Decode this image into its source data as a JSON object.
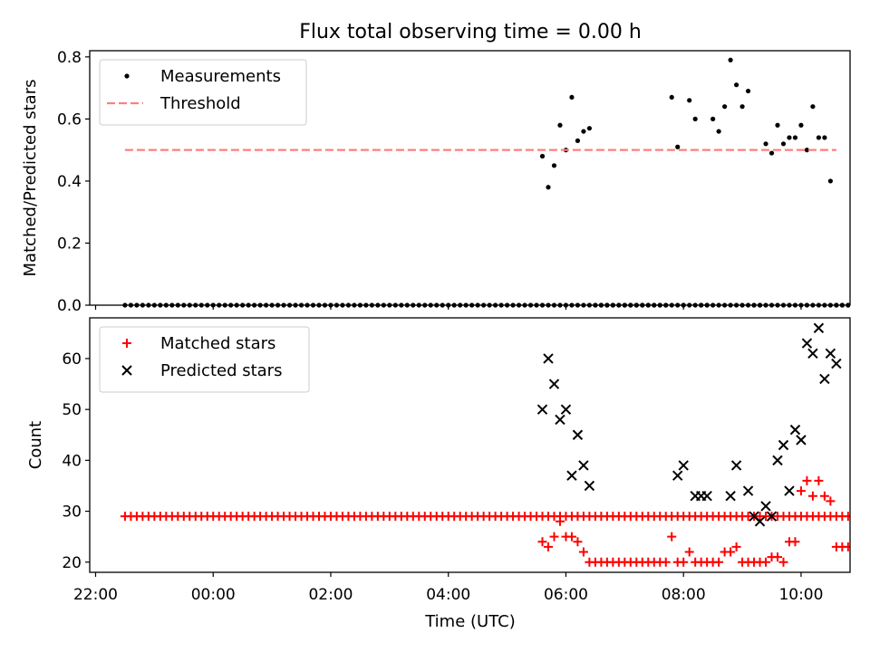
{
  "title": "Flux total observing time = 0.00 h",
  "xlabel": "Time (UTC)",
  "x_tick_labels": [
    "22:00",
    "00:00",
    "02:00",
    "04:00",
    "06:00",
    "08:00",
    "10:00"
  ],
  "chart_data": [
    {
      "type": "scatter",
      "ylabel": "Matched/Predicted stars",
      "ylim": [
        0,
        0.82
      ],
      "yticks": [
        0.0,
        0.2,
        0.4,
        0.6,
        0.8
      ],
      "y_tick_labels": [
        "0.0",
        "0.2",
        "0.4",
        "0.6",
        "0.8"
      ],
      "legend_placement": "upper-left",
      "series": [
        {
          "name": "Measurements",
          "style": "dot",
          "color": "#000000",
          "x": [
            "22:30",
            "22:36",
            "22:42",
            "22:48",
            "22:54",
            "23:00",
            "23:06",
            "23:12",
            "23:18",
            "23:24",
            "23:30",
            "23:36",
            "23:42",
            "23:48",
            "23:54",
            "00:00",
            "00:06",
            "00:12",
            "00:18",
            "00:24",
            "00:30",
            "00:36",
            "00:42",
            "00:48",
            "00:54",
            "01:00",
            "01:06",
            "01:12",
            "01:18",
            "01:24",
            "01:30",
            "01:36",
            "01:42",
            "01:48",
            "01:54",
            "02:00",
            "02:06",
            "02:12",
            "02:18",
            "02:24",
            "02:30",
            "02:36",
            "02:42",
            "02:48",
            "02:54",
            "03:00",
            "03:06",
            "03:12",
            "03:18",
            "03:24",
            "03:30",
            "03:36",
            "03:42",
            "03:48",
            "03:54",
            "04:00",
            "04:06",
            "04:12",
            "04:18",
            "04:24",
            "04:30",
            "04:36",
            "04:42",
            "04:48",
            "04:54",
            "05:00",
            "05:06",
            "05:12",
            "05:18",
            "05:24",
            "05:30",
            "05:36",
            "05:42",
            "05:48",
            "05:54",
            "06:00",
            "06:06",
            "06:12",
            "06:18",
            "06:24",
            "06:30",
            "06:36",
            "06:42",
            "06:48",
            "06:54",
            "07:00",
            "07:06",
            "07:12",
            "07:18",
            "07:24",
            "07:30",
            "07:36",
            "07:42",
            "07:48",
            "07:54",
            "08:00",
            "08:06",
            "08:12",
            "08:18",
            "08:24",
            "08:30",
            "08:36",
            "08:42",
            "08:48",
            "08:54",
            "09:00",
            "09:06",
            "09:12",
            "09:18",
            "09:24",
            "09:30",
            "09:36",
            "09:42",
            "09:48",
            "09:54",
            "10:00",
            "10:06",
            "10:12",
            "10:18",
            "10:24",
            "10:30",
            "10:36",
            "10:42",
            "10:48"
          ],
          "y": [
            0,
            0,
            0,
            0,
            0,
            0,
            0,
            0,
            0,
            0,
            0,
            0,
            0,
            0,
            0,
            0,
            0,
            0,
            0,
            0,
            0,
            0,
            0,
            0,
            0,
            0,
            0,
            0,
            0,
            0,
            0,
            0,
            0,
            0,
            0,
            0,
            0,
            0,
            0,
            0,
            0,
            0,
            0,
            0,
            0,
            0,
            0,
            0,
            0,
            0,
            0,
            0,
            0,
            0,
            0,
            0,
            0,
            0,
            0,
            0,
            0,
            0,
            0,
            0,
            0,
            0,
            0,
            0,
            0,
            0,
            0,
            0,
            0,
            0,
            0,
            0,
            0,
            0,
            0,
            0,
            0,
            0,
            0,
            0,
            0,
            0,
            0,
            0,
            0,
            0,
            0,
            0,
            0,
            0,
            0,
            0,
            0,
            0,
            0,
            0,
            0,
            0,
            0,
            0,
            0,
            0,
            0,
            0,
            0,
            0,
            0,
            0,
            0,
            0,
            0,
            0,
            0,
            0,
            0,
            0,
            0,
            0,
            0,
            0
          ]
        },
        {
          "name": "Measurements",
          "style": "dot",
          "color": "#000000",
          "x": [
            "05:36",
            "05:42",
            "05:48",
            "05:54",
            "06:00",
            "06:06",
            "06:12",
            "06:18",
            "06:24",
            "06:30",
            "06:36",
            "06:42",
            "06:48",
            "06:54",
            "07:00",
            "07:06",
            "07:12",
            "07:18",
            "07:24",
            "07:30",
            "07:36",
            "07:42",
            "07:48",
            "07:54",
            "08:00",
            "08:06",
            "08:12",
            "08:18",
            "08:24",
            "08:30",
            "08:36",
            "08:42",
            "08:48",
            "08:54",
            "09:00",
            "09:06",
            "09:12",
            "09:18",
            "09:24",
            "09:30",
            "09:36",
            "09:42",
            "09:48",
            "09:54",
            "10:00",
            "10:06",
            "10:12",
            "10:18",
            "10:24",
            "10:30",
            "10:36",
            "10:42",
            "10:48"
          ],
          "y": [
            0.48,
            0.38,
            0.45,
            0.58,
            0.5,
            0.67,
            0.53,
            0.56,
            0.57,
            0,
            0,
            0,
            0,
            0,
            0,
            0,
            0,
            0,
            0,
            0,
            0,
            0,
            0.67,
            0.51,
            0,
            0.66,
            0.6,
            0,
            0,
            0.6,
            0.56,
            0.64,
            0.79,
            0.71,
            0.64,
            0.69,
            0,
            0,
            0.52,
            0.49,
            0.58,
            0.52,
            0.54,
            0.54,
            0.58,
            0.5,
            0.64,
            0.54,
            0.54,
            0.4,
            0,
            0,
            0
          ]
        },
        {
          "name": "Threshold",
          "style": "dashed-line",
          "color": "#ff7f7f",
          "x": [
            "22:30",
            "10:36"
          ],
          "y": [
            0.5,
            0.5
          ]
        }
      ]
    },
    {
      "type": "scatter",
      "ylabel": "Count",
      "ylim": [
        18,
        68
      ],
      "yticks": [
        20,
        30,
        40,
        50,
        60
      ],
      "y_tick_labels": [
        "20",
        "30",
        "40",
        "50",
        "60"
      ],
      "legend_placement": "upper-left",
      "series": [
        {
          "name": "Matched stars",
          "style": "plus",
          "color": "#ff0000",
          "x": [
            "22:30",
            "22:36",
            "22:42",
            "22:48",
            "22:54",
            "23:00",
            "23:06",
            "23:12",
            "23:18",
            "23:24",
            "23:30",
            "23:36",
            "23:42",
            "23:48",
            "23:54",
            "00:00",
            "00:06",
            "00:12",
            "00:18",
            "00:24",
            "00:30",
            "00:36",
            "00:42",
            "00:48",
            "00:54",
            "01:00",
            "01:06",
            "01:12",
            "01:18",
            "01:24",
            "01:30",
            "01:36",
            "01:42",
            "01:48",
            "01:54",
            "02:00",
            "02:06",
            "02:12",
            "02:18",
            "02:24",
            "02:30",
            "02:36",
            "02:42",
            "02:48",
            "02:54",
            "03:00",
            "03:06",
            "03:12",
            "03:18",
            "03:24",
            "03:30",
            "03:36",
            "03:42",
            "03:48",
            "03:54",
            "04:00",
            "04:06",
            "04:12",
            "04:18",
            "04:24",
            "04:30",
            "04:36",
            "04:42",
            "04:48",
            "04:54",
            "05:00",
            "05:06",
            "05:12",
            "05:18",
            "05:24",
            "05:30",
            "05:36",
            "05:42",
            "05:48",
            "05:54",
            "06:00",
            "06:06",
            "06:12",
            "06:18",
            "06:24",
            "06:30",
            "06:36",
            "06:42",
            "06:48",
            "06:54",
            "07:00",
            "07:06",
            "07:12",
            "07:18",
            "07:24",
            "07:30",
            "07:36",
            "07:42",
            "07:48",
            "07:54",
            "08:00",
            "08:06",
            "08:12",
            "08:18",
            "08:24",
            "08:30",
            "08:36",
            "08:42",
            "08:48",
            "08:54",
            "09:00",
            "09:06",
            "09:12",
            "09:18",
            "09:24",
            "09:30",
            "09:36",
            "09:42",
            "09:48",
            "09:54",
            "10:00",
            "10:06",
            "10:12",
            "10:18",
            "10:24",
            "10:30",
            "10:36",
            "10:42",
            "10:48"
          ],
          "y": [
            29,
            29,
            29,
            29,
            29,
            29,
            29,
            29,
            29,
            29,
            29,
            29,
            29,
            29,
            29,
            29,
            29,
            29,
            29,
            29,
            29,
            29,
            29,
            29,
            29,
            29,
            29,
            29,
            29,
            29,
            29,
            29,
            29,
            29,
            29,
            29,
            29,
            29,
            29,
            29,
            29,
            29,
            29,
            29,
            29,
            29,
            29,
            29,
            29,
            29,
            29,
            29,
            29,
            29,
            29,
            29,
            29,
            29,
            29,
            29,
            29,
            29,
            29,
            29,
            29,
            29,
            29,
            29,
            29,
            29,
            29,
            29,
            29,
            29,
            29,
            29,
            29,
            29,
            29,
            29,
            29,
            29,
            29,
            29,
            29,
            29,
            29,
            29,
            29,
            29,
            29,
            29,
            29,
            29,
            29,
            29,
            29,
            29,
            29,
            29,
            29,
            29,
            29,
            29,
            29,
            29,
            29,
            29,
            29,
            29,
            29,
            29,
            29,
            29,
            29,
            29,
            29,
            29,
            29,
            29,
            29,
            29,
            29,
            29
          ]
        },
        {
          "name": "Matched stars",
          "style": "plus",
          "color": "#ff0000",
          "x": [
            "05:36",
            "05:42",
            "05:48",
            "05:54",
            "06:00",
            "06:06",
            "06:12",
            "06:18",
            "06:24",
            "06:30",
            "06:36",
            "06:42",
            "06:48",
            "06:54",
            "07:00",
            "07:06",
            "07:12",
            "07:18",
            "07:24",
            "07:30",
            "07:36",
            "07:42",
            "07:48",
            "07:54",
            "08:00",
            "08:06",
            "08:12",
            "08:18",
            "08:24",
            "08:30",
            "08:36",
            "08:42",
            "08:48",
            "08:54",
            "09:00",
            "09:06",
            "09:12",
            "09:18",
            "09:24",
            "09:30",
            "09:36",
            "09:42",
            "09:48",
            "09:54",
            "10:00",
            "10:06",
            "10:12",
            "10:18",
            "10:24",
            "10:30",
            "10:36",
            "10:42",
            "10:48"
          ],
          "y": [
            24,
            23,
            25,
            28,
            25,
            25,
            24,
            22,
            20,
            20,
            20,
            20,
            20,
            20,
            20,
            20,
            20,
            20,
            20,
            20,
            20,
            20,
            25,
            20,
            20,
            22,
            20,
            20,
            20,
            20,
            20,
            22,
            22,
            23,
            20,
            20,
            20,
            20,
            20,
            21,
            21,
            20,
            24,
            24,
            34,
            36,
            33,
            36,
            33,
            32,
            23,
            23,
            23
          ]
        },
        {
          "name": "Predicted stars",
          "style": "x",
          "color": "#000000",
          "x": [
            "05:36",
            "05:42",
            "05:48",
            "05:54",
            "06:00",
            "06:06",
            "06:12",
            "06:18",
            "06:24",
            "07:54",
            "08:00",
            "08:12",
            "08:18",
            "08:24",
            "08:48",
            "08:54",
            "09:06",
            "09:12",
            "09:18",
            "09:24",
            "09:30",
            "09:36",
            "09:42",
            "09:48",
            "09:54",
            "10:00",
            "10:06",
            "10:12",
            "10:18",
            "10:24",
            "10:30",
            "10:36"
          ],
          "y": [
            50,
            60,
            55,
            48,
            50,
            37,
            45,
            39,
            35,
            37,
            39,
            33,
            33,
            33,
            33,
            39,
            34,
            29,
            28,
            31,
            29,
            40,
            43,
            34,
            46,
            44,
            63,
            61,
            66,
            56,
            61,
            59
          ]
        }
      ]
    }
  ]
}
